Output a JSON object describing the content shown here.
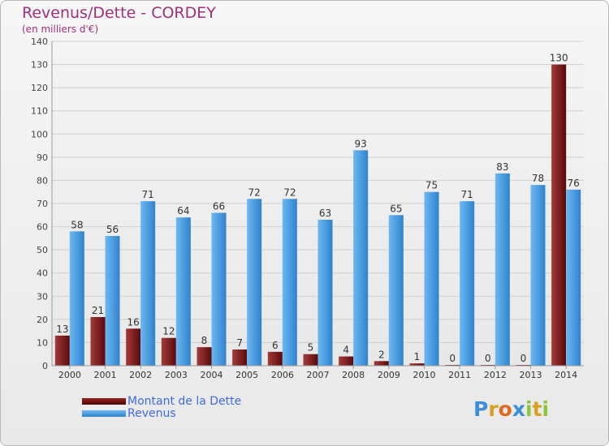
{
  "chart_data": {
    "type": "bar",
    "title": "Revenus/Dette - CORDEY",
    "subtitle": "(en milliers d'€)",
    "xlabel": "",
    "ylabel": "",
    "ylim": [
      0,
      140
    ],
    "yticks": [
      0,
      10,
      20,
      30,
      40,
      50,
      60,
      70,
      80,
      90,
      100,
      110,
      120,
      130,
      140
    ],
    "grid": true,
    "legend_position": "bottom-left",
    "categories": [
      "2000",
      "2001",
      "2002",
      "2003",
      "2004",
      "2005",
      "2006",
      "2007",
      "2008",
      "2009",
      "2010",
      "2011",
      "2012",
      "2013",
      "2014"
    ],
    "series": [
      {
        "name": "Montant de la Dette",
        "color": "#8b1a1a",
        "values": [
          13,
          21,
          16,
          12,
          8,
          7,
          6,
          5,
          4,
          2,
          1,
          0,
          0,
          0,
          130
        ]
      },
      {
        "name": "Revenus",
        "color": "#4a9fe0",
        "values": [
          58,
          56,
          71,
          64,
          66,
          72,
          72,
          63,
          93,
          65,
          75,
          71,
          83,
          78,
          76
        ]
      }
    ]
  },
  "legend": {
    "debt_label": "Montant de la Dette",
    "revenue_label": "Revenus"
  },
  "logo": {
    "letters": [
      "P",
      "r",
      "o",
      "x",
      "i",
      "t",
      "i"
    ],
    "colors": [
      "#3a8fd8",
      "#d8a020",
      "#e06820",
      "#3a8fd8",
      "#8cc63f",
      "#d8a020",
      "#8cc63f"
    ]
  }
}
